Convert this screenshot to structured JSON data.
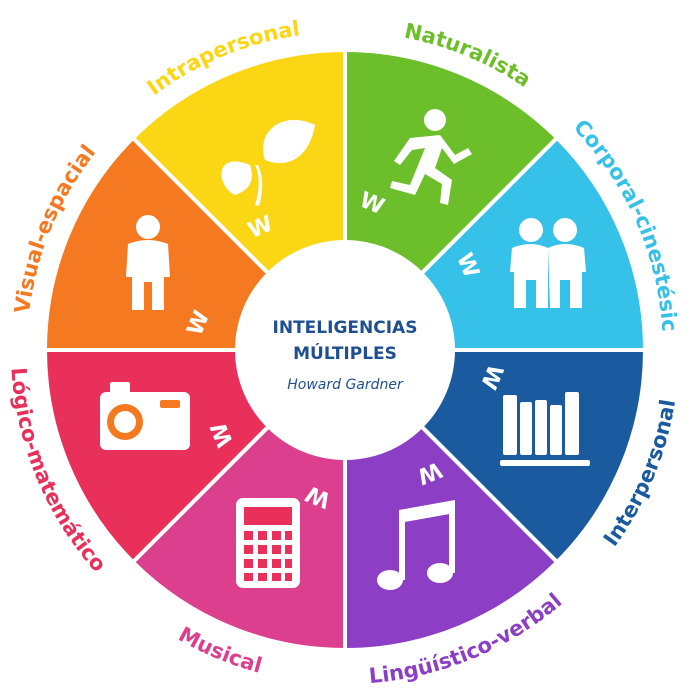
{
  "center": {
    "title_line1": "INTELIGENCIAS",
    "title_line2": "MÚLTIPLES",
    "subtitle": "Howard Gardner",
    "text_color": "#1e4f91"
  },
  "segments": [
    {
      "key": "naturalista",
      "label": "Naturalista",
      "color": "#6cbf2b",
      "icon": "leaves-icon"
    },
    {
      "key": "corporal",
      "label": "Corporal-cinestésica",
      "color": "#36c1e8",
      "icon": "running-person-icon"
    },
    {
      "key": "interpersonal",
      "label": "Interpersonal",
      "color": "#1a5a9e",
      "icon": "two-people-icon"
    },
    {
      "key": "linguistico",
      "label": "Lingüístico-verbal",
      "color": "#8c3fc4",
      "icon": "books-icon"
    },
    {
      "key": "musical",
      "label": "Musical",
      "color": "#dc3f8d",
      "icon": "music-note-icon"
    },
    {
      "key": "logico",
      "label": "Lógico-matemático",
      "color": "#e8305a",
      "icon": "calculator-icon"
    },
    {
      "key": "visual",
      "label": "Visual-espacial",
      "color": "#f47920",
      "icon": "camera-icon"
    },
    {
      "key": "intrapersonal",
      "label": "Intrapersonal",
      "color": "#fbd614",
      "icon": "person-icon"
    }
  ],
  "brand_mark": "W"
}
